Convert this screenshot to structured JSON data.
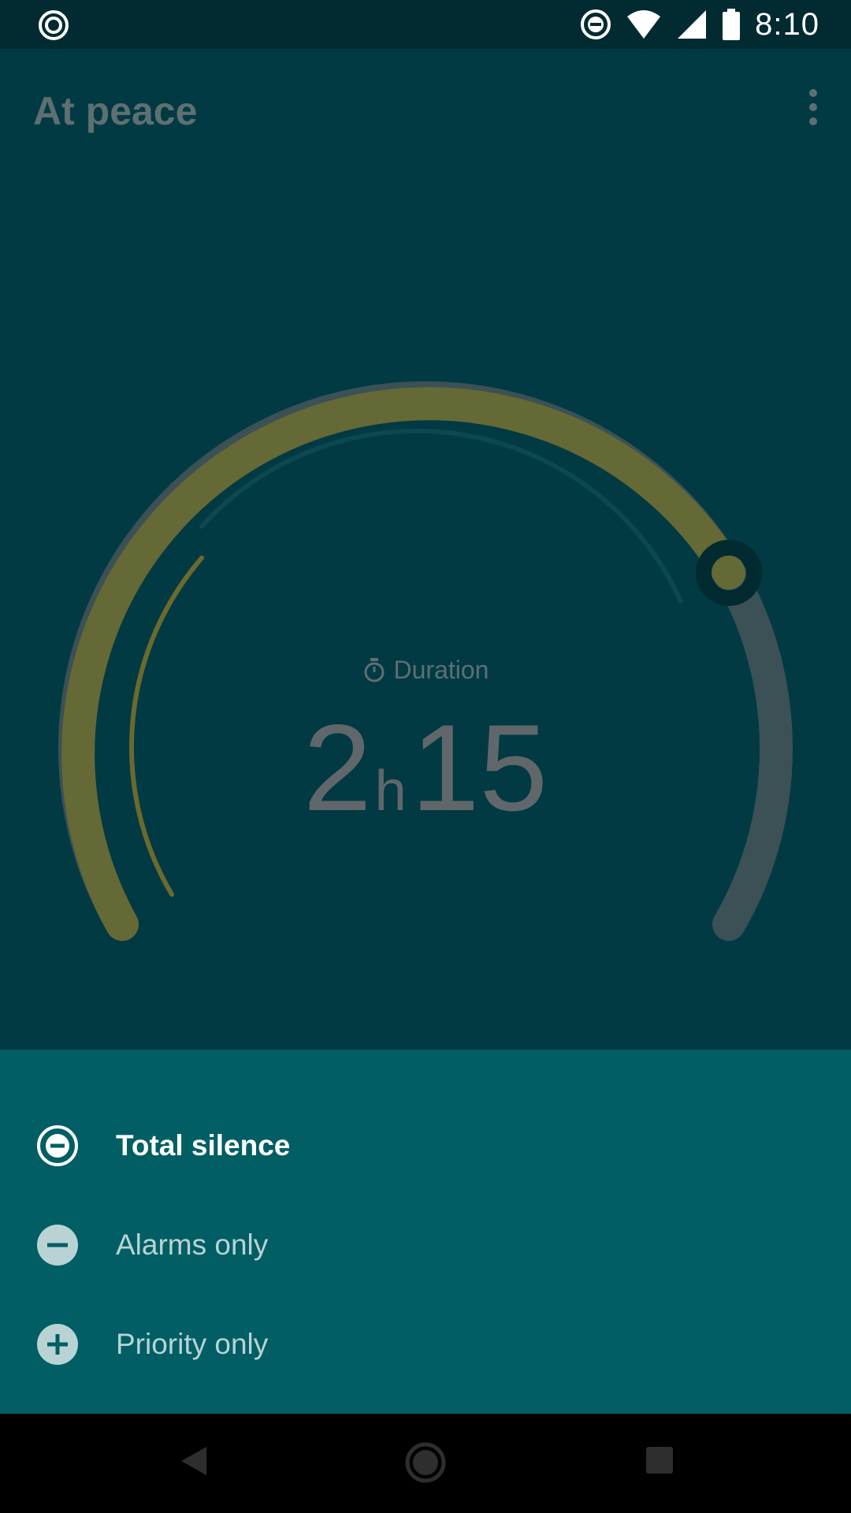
{
  "status_bar": {
    "time": "8:10",
    "icons": [
      "target-icon",
      "do-not-disturb-icon",
      "wifi-icon",
      "signal-icon",
      "battery-icon"
    ]
  },
  "app": {
    "title": "At peace",
    "menu_icon": "more-vert-icon"
  },
  "dial": {
    "label": "Duration",
    "label_icon": "timer-icon",
    "hours": "2",
    "hours_unit": "h",
    "minutes": "15",
    "progress_fraction": 0.74,
    "colors": {
      "progress": "#646935",
      "track": "#3b5155",
      "inner_progress": "#6b6a2e",
      "inner_track": "#0b4850",
      "handle": "#012a31"
    }
  },
  "modes": [
    {
      "label": "Total silence",
      "icon": "total-silence-icon",
      "selected": true
    },
    {
      "label": "Alarms only",
      "icon": "alarms-only-icon",
      "selected": false
    },
    {
      "label": "Priority only",
      "icon": "priority-only-icon",
      "selected": false
    }
  ],
  "nav_bar": {
    "buttons": [
      "back-icon",
      "home-icon",
      "recents-icon"
    ]
  },
  "colors": {
    "status_bar": "#012a31",
    "background": "#023a43",
    "sheet": "#015e65"
  }
}
